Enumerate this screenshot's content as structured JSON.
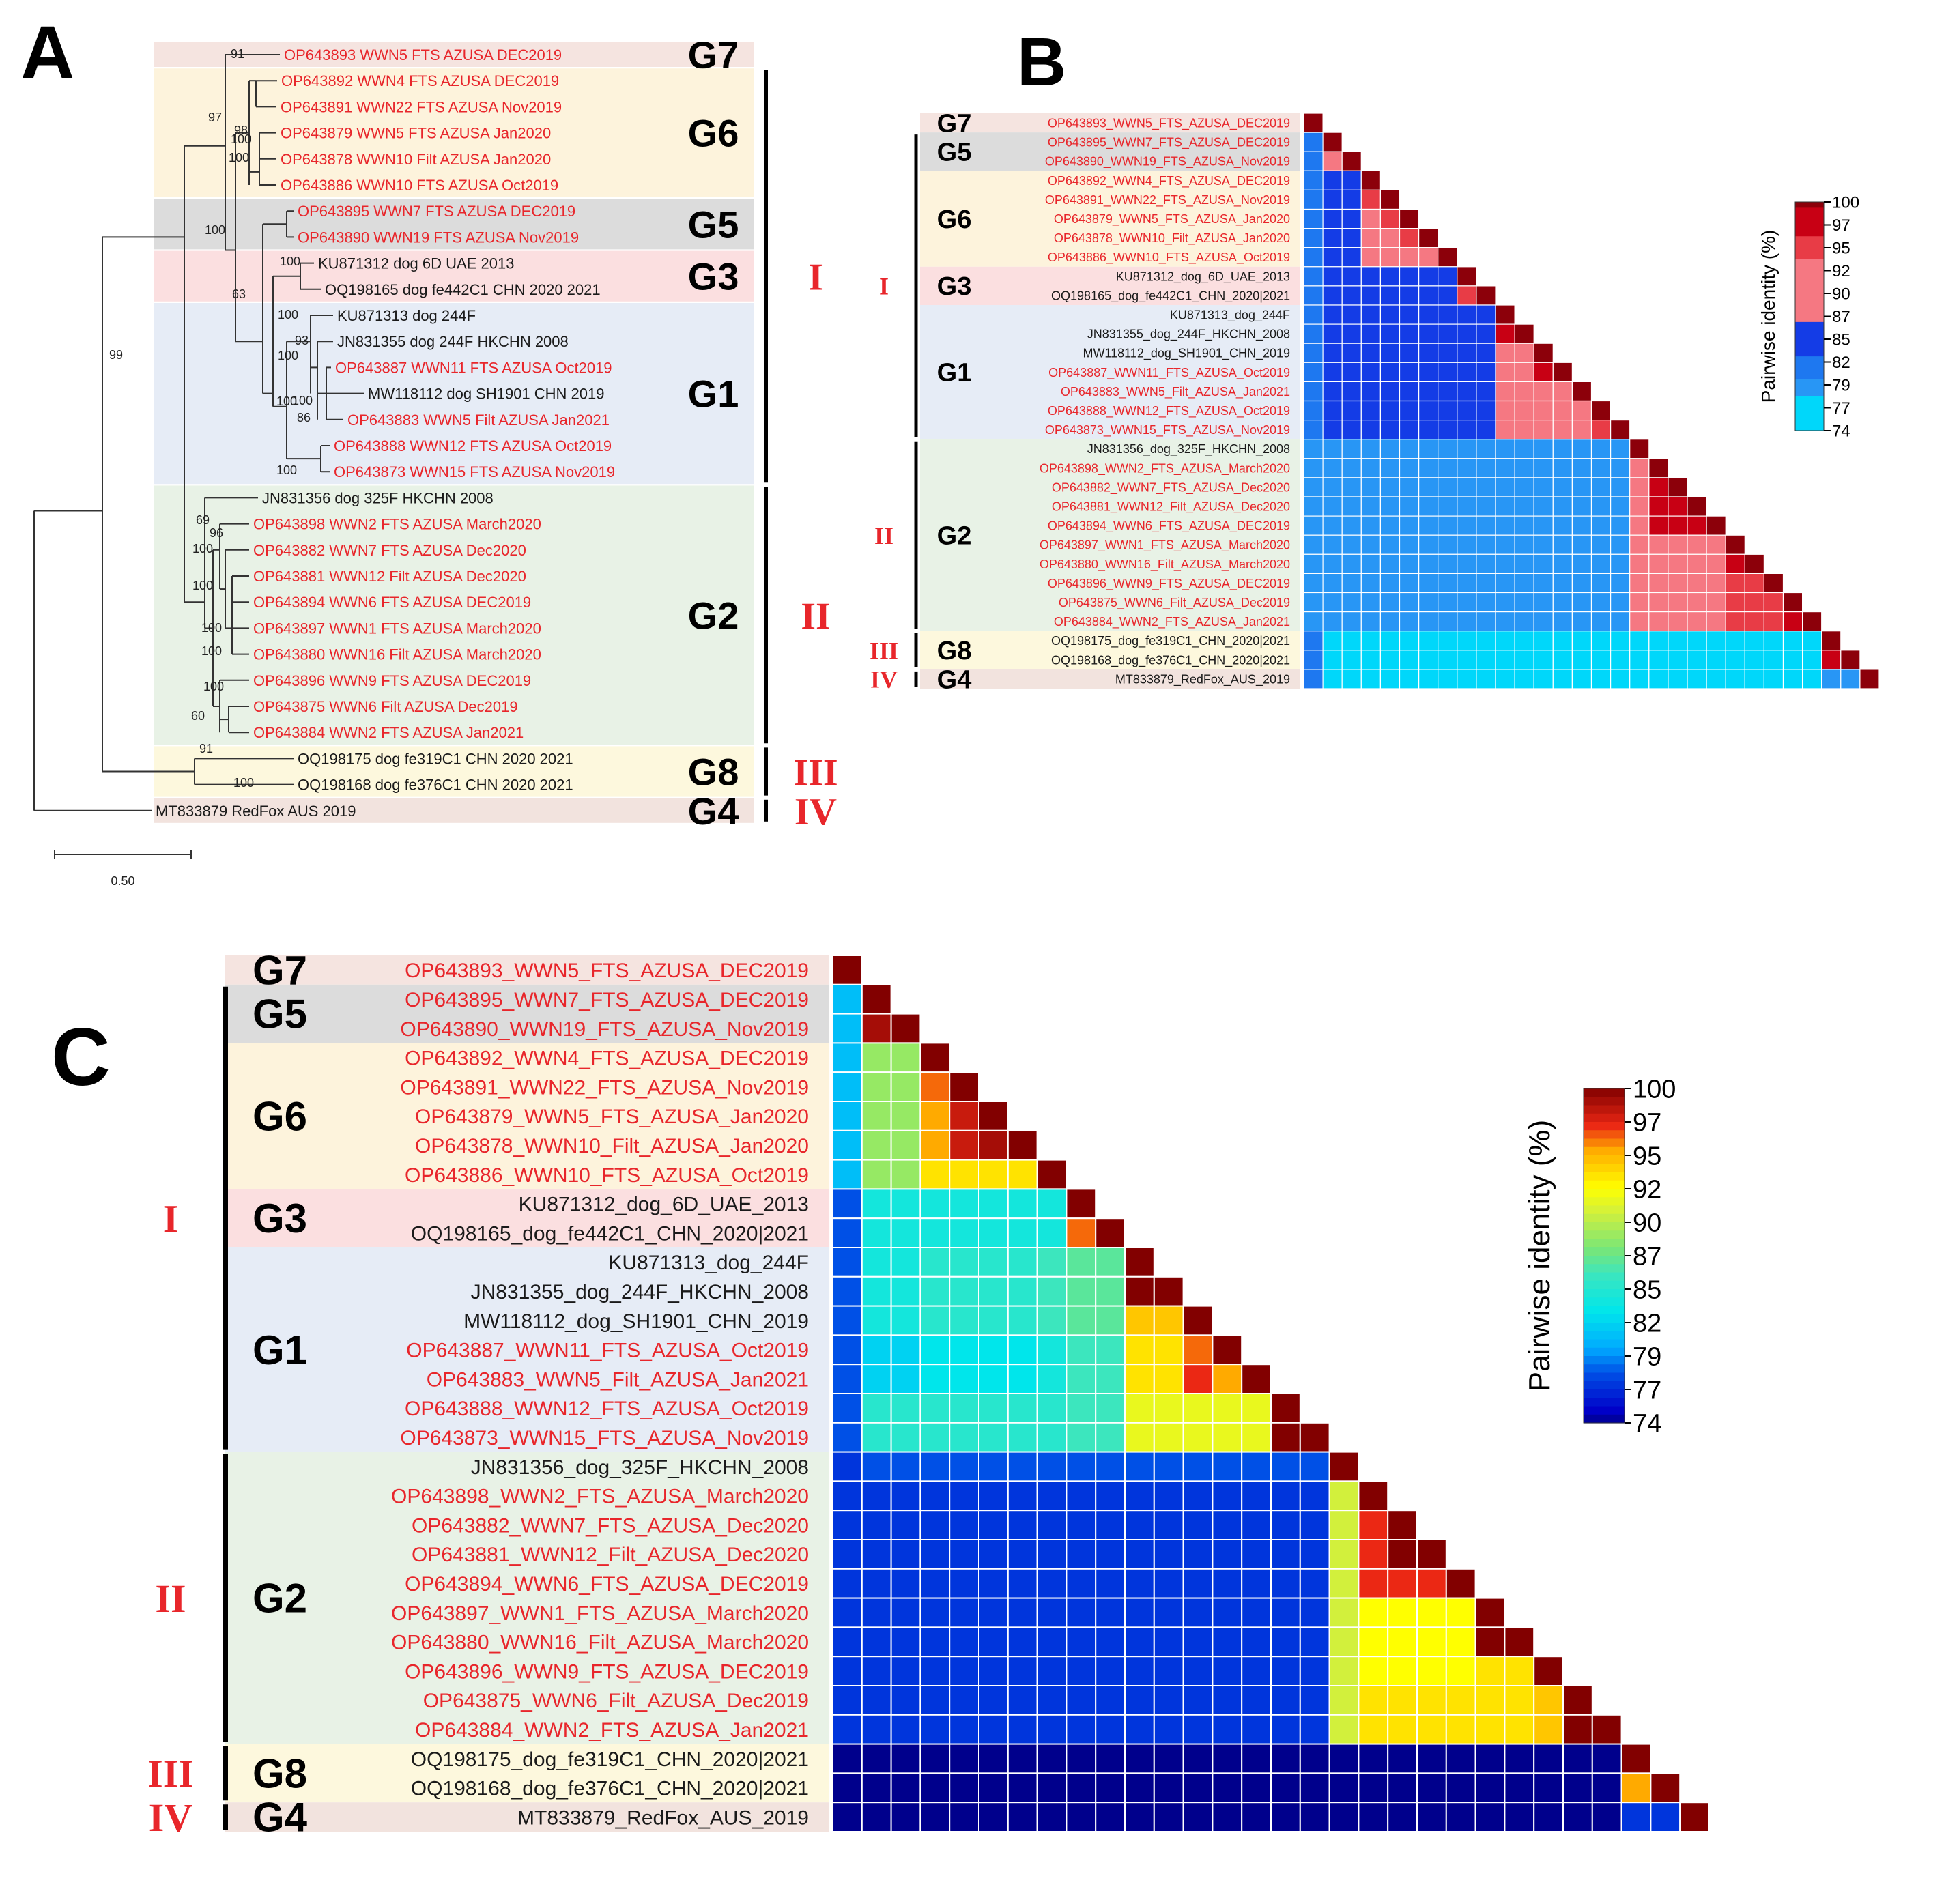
{
  "panels": {
    "a": "A",
    "b": "B",
    "c": "C"
  },
  "colors": {
    "local": "#e8262b",
    "reference": "#1a1a1a",
    "roman": "#e8262b",
    "G7": "#f5e4e0",
    "G6": "#fdf3dc",
    "G5": "#dcdcdc",
    "G3": "#fbdfe0",
    "G1": "#e6ecf6",
    "G2": "#e8f2e6",
    "G8": "#fdf8dd",
    "G4": "#f2e3de"
  },
  "groups": [
    {
      "name": "G7",
      "start": 0,
      "end": 0
    },
    {
      "name": "G5",
      "start": 1,
      "end": 2
    },
    {
      "name": "G6",
      "start": 3,
      "end": 7
    },
    {
      "name": "G3",
      "start": 8,
      "end": 9
    },
    {
      "name": "G1",
      "start": 10,
      "end": 16
    },
    {
      "name": "G2",
      "start": 17,
      "end": 26
    },
    {
      "name": "G8",
      "start": 27,
      "end": 28
    },
    {
      "name": "G4",
      "start": 29,
      "end": 29
    }
  ],
  "clusters": [
    {
      "name": "I",
      "start": 1,
      "end": 16
    },
    {
      "name": "II",
      "start": 17,
      "end": 26
    },
    {
      "name": "III",
      "start": 27,
      "end": 28
    },
    {
      "name": "IV",
      "start": 29,
      "end": 29
    }
  ],
  "sequences": [
    {
      "label": "OP643893_WWN5_FTS_AZUSA_DEC2019",
      "local": true
    },
    {
      "label": "OP643895_WWN7_FTS_AZUSA_DEC2019",
      "local": true
    },
    {
      "label": "OP643890_WWN19_FTS_AZUSA_Nov2019",
      "local": true
    },
    {
      "label": "OP643892_WWN4_FTS_AZUSA_DEC2019",
      "local": true
    },
    {
      "label": "OP643891_WWN22_FTS_AZUSA_Nov2019",
      "local": true
    },
    {
      "label": "OP643879_WWN5_FTS_AZUSA_Jan2020",
      "local": true
    },
    {
      "label": "OP643878_WWN10_Filt_AZUSA_Jan2020",
      "local": true
    },
    {
      "label": "OP643886_WWN10_FTS_AZUSA_Oct2019",
      "local": true
    },
    {
      "label": "KU871312_dog_6D_UAE_2013",
      "local": false
    },
    {
      "label": "OQ198165_dog_fe442C1_CHN_2020|2021",
      "local": false
    },
    {
      "label": "KU871313_dog_244F",
      "local": false
    },
    {
      "label": "JN831355_dog_244F_HKCHN_2008",
      "local": false
    },
    {
      "label": "MW118112_dog_SH1901_CHN_2019",
      "local": false
    },
    {
      "label": "OP643887_WWN11_FTS_AZUSA_Oct2019",
      "local": true
    },
    {
      "label": "OP643883_WWN5_Filt_AZUSA_Jan2021",
      "local": true
    },
    {
      "label": "OP643888_WWN12_FTS_AZUSA_Oct2019",
      "local": true
    },
    {
      "label": "OP643873_WWN15_FTS_AZUSA_Nov2019",
      "local": true
    },
    {
      "label": "JN831356_dog_325F_HKCHN_2008",
      "local": false
    },
    {
      "label": "OP643898_WWN2_FTS_AZUSA_March2020",
      "local": true
    },
    {
      "label": "OP643882_WWN7_FTS_AZUSA_Dec2020",
      "local": true
    },
    {
      "label": "OP643881_WWN12_Filt_AZUSA_Dec2020",
      "local": true
    },
    {
      "label": "OP643894_WWN6_FTS_AZUSA_DEC2019",
      "local": true
    },
    {
      "label": "OP643897_WWN1_FTS_AZUSA_March2020",
      "local": true
    },
    {
      "label": "OP643880_WWN16_Filt_AZUSA_March2020",
      "local": true
    },
    {
      "label": "OP643896_WWN9_FTS_AZUSA_DEC2019",
      "local": true
    },
    {
      "label": "OP643875_WWN6_Filt_AZUSA_Dec2019",
      "local": true
    },
    {
      "label": "OP643884_WWN2_FTS_AZUSA_Jan2021",
      "local": true
    },
    {
      "label": "OQ198175_dog_fe319C1_CHN_2020|2021",
      "local": false
    },
    {
      "label": "OQ198168_dog_fe376C1_CHN_2020|2021",
      "local": false
    },
    {
      "label": "MT833879_RedFox_AUS_2019",
      "local": false
    }
  ],
  "tree": {
    "leaves": [
      "OP643893 WWN5 FTS AZUSA DEC2019",
      "OP643892 WWN4 FTS AZUSA DEC2019",
      "OP643891 WWN22 FTS AZUSA Nov2019",
      "OP643879 WWN5 FTS AZUSA Jan2020",
      "OP643878 WWN10 Filt AZUSA Jan2020",
      "OP643886 WWN10 FTS AZUSA Oct2019",
      "OP643895 WWN7 FTS AZUSA DEC2019",
      "OP643890 WWN19 FTS AZUSA Nov2019",
      "KU871312 dog 6D UAE 2013",
      "OQ198165 dog fe442C1 CHN 2020 2021",
      "KU871313 dog 244F",
      "JN831355 dog 244F HKCHN 2008",
      "OP643887 WWN11 FTS AZUSA Oct2019",
      "MW118112 dog SH1901 CHN 2019",
      "OP643883 WWN5 Filt AZUSA Jan2021",
      "OP643888 WWN12 FTS AZUSA Oct2019",
      "OP643873 WWN15 FTS AZUSA Nov2019",
      "JN831356 dog 325F HKCHN 2008",
      "OP643898 WWN2 FTS AZUSA March2020",
      "OP643882 WWN7 FTS AZUSA Dec2020",
      "OP643881 WWN12 Filt AZUSA Dec2020",
      "OP643894 WWN6 FTS AZUSA DEC2019",
      "OP643897 WWN1 FTS AZUSA March2020",
      "OP643880 WWN16 Filt AZUSA March2020",
      "OP643896 WWN9 FTS AZUSA DEC2019",
      "OP643875 WWN6 Filt AZUSA Dec2019",
      "OP643884 WWN2 FTS AZUSA Jan2021",
      "OQ198175 dog fe319C1 CHN 2020 2021",
      "OQ198168 dog fe376C1 CHN 2020 2021",
      "MT833879 RedFox AUS 2019"
    ],
    "leaf_local": [
      true,
      true,
      true,
      true,
      true,
      true,
      true,
      true,
      false,
      false,
      false,
      false,
      true,
      false,
      true,
      true,
      true,
      false,
      true,
      true,
      true,
      true,
      true,
      true,
      true,
      true,
      true,
      false,
      false,
      false
    ],
    "groups": [
      {
        "name": "G7",
        "start": 0,
        "end": 0
      },
      {
        "name": "G6",
        "start": 1,
        "end": 5
      },
      {
        "name": "G5",
        "start": 6,
        "end": 7
      },
      {
        "name": "G3",
        "start": 8,
        "end": 9
      },
      {
        "name": "G1",
        "start": 10,
        "end": 16
      },
      {
        "name": "G2",
        "start": 17,
        "end": 26
      },
      {
        "name": "G8",
        "start": 27,
        "end": 28
      },
      {
        "name": "G4",
        "start": 29,
        "end": 29
      }
    ],
    "clusters": [
      {
        "name": "I",
        "start": 1,
        "end": 16,
        "roman_start": 8,
        "roman_end": 9
      },
      {
        "name": "II",
        "start": 17,
        "end": 26
      },
      {
        "name": "III",
        "start": 27,
        "end": 28
      },
      {
        "name": "IV",
        "start": 29,
        "end": 29
      }
    ],
    "bootstrap": [
      "91",
      "97",
      "98",
      "100",
      "100",
      "100",
      "100",
      "63",
      "100",
      "100",
      "93",
      "100",
      "100",
      "86",
      "100",
      "99",
      "69",
      "96",
      "100",
      "100",
      "100",
      "100",
      "100",
      "60",
      "91",
      "100"
    ],
    "scale_label": "0.50"
  },
  "colorbar": {
    "title": "Pairwise identity (%)",
    "ticks": [
      "100",
      "97",
      "95",
      "92",
      "90",
      "87",
      "85",
      "82",
      "79",
      "77",
      "74"
    ]
  },
  "matrix_b": [
    [
      100
    ],
    [
      79,
      100
    ],
    [
      79,
      90,
      100
    ],
    [
      79,
      82,
      82,
      100
    ],
    [
      79,
      82,
      82,
      93,
      100
    ],
    [
      79,
      82,
      82,
      91,
      94,
      100
    ],
    [
      79,
      82,
      82,
      90,
      92,
      95,
      100
    ],
    [
      79,
      82,
      82,
      89,
      90,
      91,
      92,
      100
    ],
    [
      80,
      82,
      82,
      82,
      82,
      82,
      82,
      82,
      100
    ],
    [
      80,
      82,
      82,
      82,
      82,
      82,
      82,
      82,
      95,
      100
    ],
    [
      80,
      83,
      83,
      82,
      82,
      82,
      82,
      82,
      83,
      83,
      100
    ],
    [
      80,
      83,
      83,
      82,
      82,
      82,
      82,
      82,
      83,
      83,
      97,
      100
    ],
    [
      80,
      83,
      83,
      82,
      82,
      82,
      82,
      82,
      83,
      83,
      92,
      92,
      100
    ],
    [
      80,
      83,
      83,
      82,
      82,
      82,
      82,
      82,
      83,
      83,
      91,
      91,
      96,
      100
    ],
    [
      80,
      83,
      83,
      82,
      82,
      82,
      82,
      82,
      83,
      83,
      91,
      91,
      91,
      91,
      100
    ],
    [
      80,
      83,
      83,
      82,
      82,
      82,
      82,
      82,
      83,
      83,
      90,
      90,
      90,
      90,
      91,
      100
    ],
    [
      80,
      83,
      83,
      82,
      82,
      82,
      82,
      82,
      83,
      83,
      90,
      90,
      90,
      90,
      91,
      94,
      100
    ],
    [
      77,
      78,
      78,
      78,
      78,
      78,
      78,
      78,
      78,
      78,
      78,
      78,
      78,
      78,
      78,
      78,
      78,
      100
    ],
    [
      77,
      78,
      78,
      78,
      78,
      78,
      78,
      78,
      78,
      78,
      78,
      78,
      78,
      78,
      78,
      78,
      78,
      91,
      100
    ],
    [
      77,
      78,
      78,
      78,
      78,
      78,
      78,
      78,
      78,
      78,
      78,
      78,
      78,
      78,
      78,
      78,
      78,
      91,
      97,
      100
    ],
    [
      77,
      78,
      78,
      78,
      78,
      78,
      78,
      78,
      78,
      78,
      78,
      78,
      78,
      78,
      78,
      78,
      78,
      91,
      97,
      98,
      100
    ],
    [
      77,
      78,
      78,
      78,
      78,
      78,
      78,
      78,
      78,
      78,
      78,
      78,
      78,
      78,
      78,
      78,
      78,
      91,
      97,
      97,
      97,
      100
    ],
    [
      77,
      78,
      78,
      78,
      78,
      78,
      78,
      78,
      78,
      78,
      78,
      78,
      78,
      78,
      78,
      78,
      78,
      91,
      92,
      92,
      92,
      92,
      100
    ],
    [
      77,
      78,
      78,
      78,
      78,
      78,
      78,
      78,
      78,
      78,
      78,
      78,
      78,
      78,
      78,
      78,
      78,
      91,
      92,
      92,
      92,
      92,
      98,
      100
    ],
    [
      77,
      78,
      78,
      78,
      78,
      78,
      78,
      78,
      78,
      78,
      78,
      78,
      78,
      78,
      78,
      78,
      78,
      91,
      92,
      92,
      92,
      92,
      93,
      93,
      100
    ],
    [
      77,
      78,
      78,
      78,
      78,
      78,
      78,
      78,
      78,
      78,
      78,
      78,
      78,
      78,
      78,
      78,
      78,
      91,
      92,
      92,
      92,
      92,
      93,
      93,
      94,
      100
    ],
    [
      77,
      78,
      78,
      78,
      78,
      78,
      78,
      78,
      78,
      78,
      78,
      78,
      78,
      78,
      78,
      78,
      78,
      91,
      92,
      92,
      92,
      92,
      93,
      93,
      94,
      96,
      100
    ],
    [
      79,
      76,
      76,
      76,
      76,
      76,
      76,
      76,
      76,
      76,
      76,
      76,
      76,
      76,
      76,
      76,
      76,
      76,
      76,
      76,
      76,
      76,
      76,
      76,
      76,
      76,
      76,
      100
    ],
    [
      79,
      76,
      76,
      76,
      76,
      76,
      76,
      76,
      76,
      76,
      76,
      76,
      76,
      76,
      76,
      76,
      76,
      76,
      76,
      76,
      76,
      76,
      76,
      76,
      76,
      76,
      76,
      96,
      100
    ],
    [
      79,
      76,
      76,
      76,
      76,
      76,
      76,
      76,
      76,
      76,
      76,
      76,
      76,
      76,
      76,
      76,
      76,
      76,
      76,
      76,
      76,
      76,
      76,
      76,
      76,
      76,
      76,
      78,
      77,
      100
    ]
  ],
  "matrix_c": [
    [
      100
    ],
    [
      80,
      100
    ],
    [
      80,
      99,
      100
    ],
    [
      80,
      88,
      88,
      100
    ],
    [
      80,
      88,
      88,
      96,
      100
    ],
    [
      80,
      88,
      88,
      95,
      98,
      100
    ],
    [
      80,
      88,
      88,
      95,
      98,
      99,
      100
    ],
    [
      80,
      88,
      88,
      93,
      93,
      93,
      93,
      100
    ],
    [
      77,
      83,
      83,
      83,
      83,
      83,
      83,
      83,
      100
    ],
    [
      77,
      83,
      83,
      83,
      83,
      83,
      83,
      83,
      96,
      100
    ],
    [
      77,
      83,
      83,
      84,
      84,
      84,
      84,
      85,
      86,
      86,
      100
    ],
    [
      77,
      83,
      83,
      84,
      84,
      84,
      84,
      85,
      86,
      86,
      100,
      100
    ],
    [
      77,
      83,
      83,
      84,
      84,
      84,
      84,
      85,
      86,
      86,
      94,
      94,
      100
    ],
    [
      77,
      81,
      81,
      82,
      82,
      82,
      82,
      83,
      85,
      85,
      93,
      93,
      96,
      100
    ],
    [
      77,
      81,
      81,
      82,
      82,
      82,
      82,
      83,
      85,
      85,
      93,
      93,
      97,
      95,
      100
    ],
    [
      77,
      84,
      84,
      84,
      84,
      84,
      84,
      84,
      85,
      85,
      91,
      91,
      91,
      91,
      91,
      100
    ],
    [
      77,
      84,
      84,
      84,
      84,
      84,
      84,
      84,
      85,
      85,
      91,
      91,
      91,
      91,
      91,
      100,
      100
    ],
    [
      76,
      77,
      77,
      77,
      77,
      77,
      77,
      77,
      77,
      77,
      77,
      77,
      77,
      77,
      77,
      77,
      77,
      100
    ],
    [
      76,
      76,
      76,
      76,
      76,
      76,
      76,
      76,
      76,
      76,
      76,
      76,
      76,
      76,
      76,
      76,
      76,
      90,
      100
    ],
    [
      76,
      76,
      76,
      76,
      76,
      76,
      76,
      76,
      76,
      76,
      76,
      76,
      76,
      76,
      76,
      76,
      76,
      90,
      97,
      100
    ],
    [
      76,
      76,
      76,
      76,
      76,
      76,
      76,
      76,
      76,
      76,
      76,
      76,
      76,
      76,
      76,
      76,
      76,
      90,
      97,
      100,
      100
    ],
    [
      76,
      76,
      76,
      76,
      76,
      76,
      76,
      76,
      76,
      76,
      76,
      76,
      76,
      76,
      76,
      76,
      76,
      90,
      97,
      97,
      97,
      100
    ],
    [
      76,
      76,
      76,
      76,
      76,
      76,
      76,
      76,
      76,
      76,
      76,
      76,
      76,
      76,
      76,
      76,
      76,
      90,
      92,
      92,
      92,
      92,
      100
    ],
    [
      76,
      76,
      76,
      76,
      76,
      76,
      76,
      76,
      76,
      76,
      76,
      76,
      76,
      76,
      76,
      76,
      76,
      90,
      92,
      92,
      92,
      92,
      100,
      100
    ],
    [
      76,
      76,
      76,
      76,
      76,
      76,
      76,
      76,
      76,
      76,
      76,
      76,
      76,
      76,
      76,
      76,
      76,
      90,
      92,
      92,
      92,
      92,
      93,
      93,
      100
    ],
    [
      76,
      76,
      76,
      76,
      76,
      76,
      76,
      76,
      76,
      76,
      76,
      76,
      76,
      76,
      76,
      76,
      76,
      90,
      93,
      93,
      93,
      93,
      93,
      93,
      94,
      100
    ],
    [
      76,
      76,
      76,
      76,
      76,
      76,
      76,
      76,
      76,
      76,
      76,
      76,
      76,
      76,
      76,
      76,
      76,
      90,
      93,
      93,
      93,
      93,
      93,
      93,
      94,
      100,
      100
    ],
    [
      73,
      73,
      73,
      73,
      73,
      73,
      73,
      73,
      73,
      73,
      73,
      73,
      73,
      73,
      73,
      73,
      73,
      73,
      73,
      73,
      73,
      73,
      73,
      73,
      73,
      73,
      73,
      100
    ],
    [
      73,
      73,
      73,
      73,
      73,
      73,
      73,
      73,
      73,
      73,
      73,
      73,
      73,
      73,
      73,
      73,
      73,
      73,
      73,
      73,
      73,
      73,
      73,
      73,
      73,
      73,
      73,
      95,
      100
    ],
    [
      73,
      73,
      73,
      73,
      73,
      73,
      73,
      73,
      73,
      73,
      73,
      73,
      73,
      73,
      73,
      73,
      73,
      73,
      73,
      73,
      73,
      73,
      73,
      73,
      73,
      73,
      73,
      76,
      76,
      100
    ]
  ]
}
